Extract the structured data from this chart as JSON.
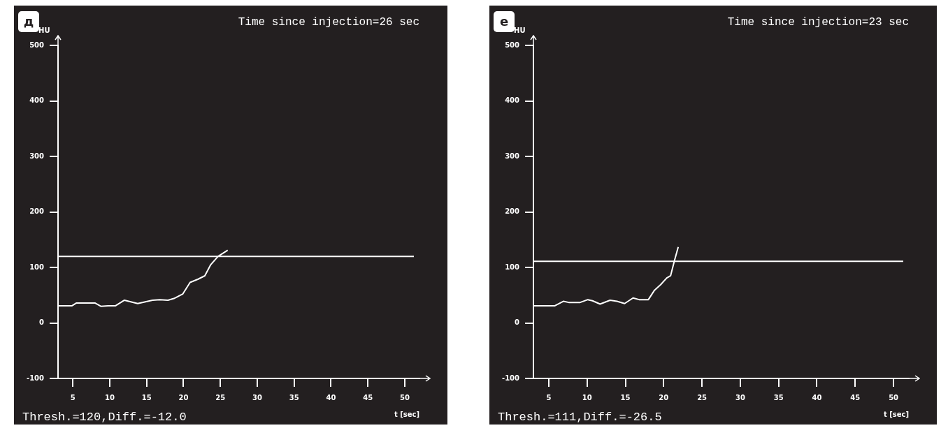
{
  "chart_data": [
    {
      "type": "line",
      "title": "Time since injection=26 sec",
      "xlabel": "t [sec]",
      "ylabel": "HU",
      "annotations": [
        "д",
        "Thresh.=120,Diff.=-12.0"
      ],
      "xlim": [
        3,
        52
      ],
      "ylim": [
        -100,
        500
      ],
      "xticks": [
        5,
        10,
        15,
        20,
        25,
        30,
        35,
        40,
        45,
        50
      ],
      "yticks": [
        -100,
        0,
        100,
        200,
        300,
        400,
        500
      ],
      "grid": false,
      "legend": false,
      "ref_lines": [
        {
          "axis": "y",
          "value": 120,
          "color": "#ffffff"
        }
      ],
      "series": [
        {
          "color": "#ffffff",
          "x": [
            3.0,
            4.9,
            5.5,
            8.0,
            8.8,
            9.8,
            10.8,
            12.0,
            13.8,
            15.8,
            16.8,
            17.9,
            18.7,
            19.9,
            20.9,
            22.0,
            22.9,
            23.7,
            24.7,
            26.0
          ],
          "values": [
            31,
            31,
            36,
            36,
            30,
            31,
            31,
            41,
            35,
            41,
            42,
            41,
            44,
            52,
            73,
            79,
            85,
            105,
            120,
            131
          ]
        }
      ]
    },
    {
      "type": "line",
      "title": "Time since injection=23 sec",
      "xlabel": "t [sec]",
      "ylabel": "HU",
      "annotations": [
        "е",
        "Thresh.=111,Diff.=-26.5"
      ],
      "xlim": [
        3,
        52
      ],
      "ylim": [
        -100,
        500
      ],
      "xticks": [
        5,
        10,
        15,
        20,
        25,
        30,
        35,
        40,
        45,
        50
      ],
      "yticks": [
        -100,
        0,
        100,
        200,
        300,
        400,
        500
      ],
      "grid": false,
      "legend": false,
      "ref_lines": [
        {
          "axis": "y",
          "value": 111,
          "color": "#ffffff"
        }
      ],
      "series": [
        {
          "color": "#ffffff",
          "x": [
            3.05,
            5.8,
            6.9,
            7.6,
            9.1,
            10.1,
            10.7,
            11.7,
            13.0,
            13.9,
            14.9,
            16.0,
            16.8,
            18.0,
            18.8,
            19.6,
            20.4,
            20.9,
            21.4,
            21.9
          ],
          "values": [
            31,
            31,
            39,
            37,
            37,
            42,
            40,
            34,
            41,
            39,
            35,
            45,
            42,
            42,
            59,
            69,
            81,
            85,
            112,
            137
          ]
        }
      ]
    }
  ]
}
